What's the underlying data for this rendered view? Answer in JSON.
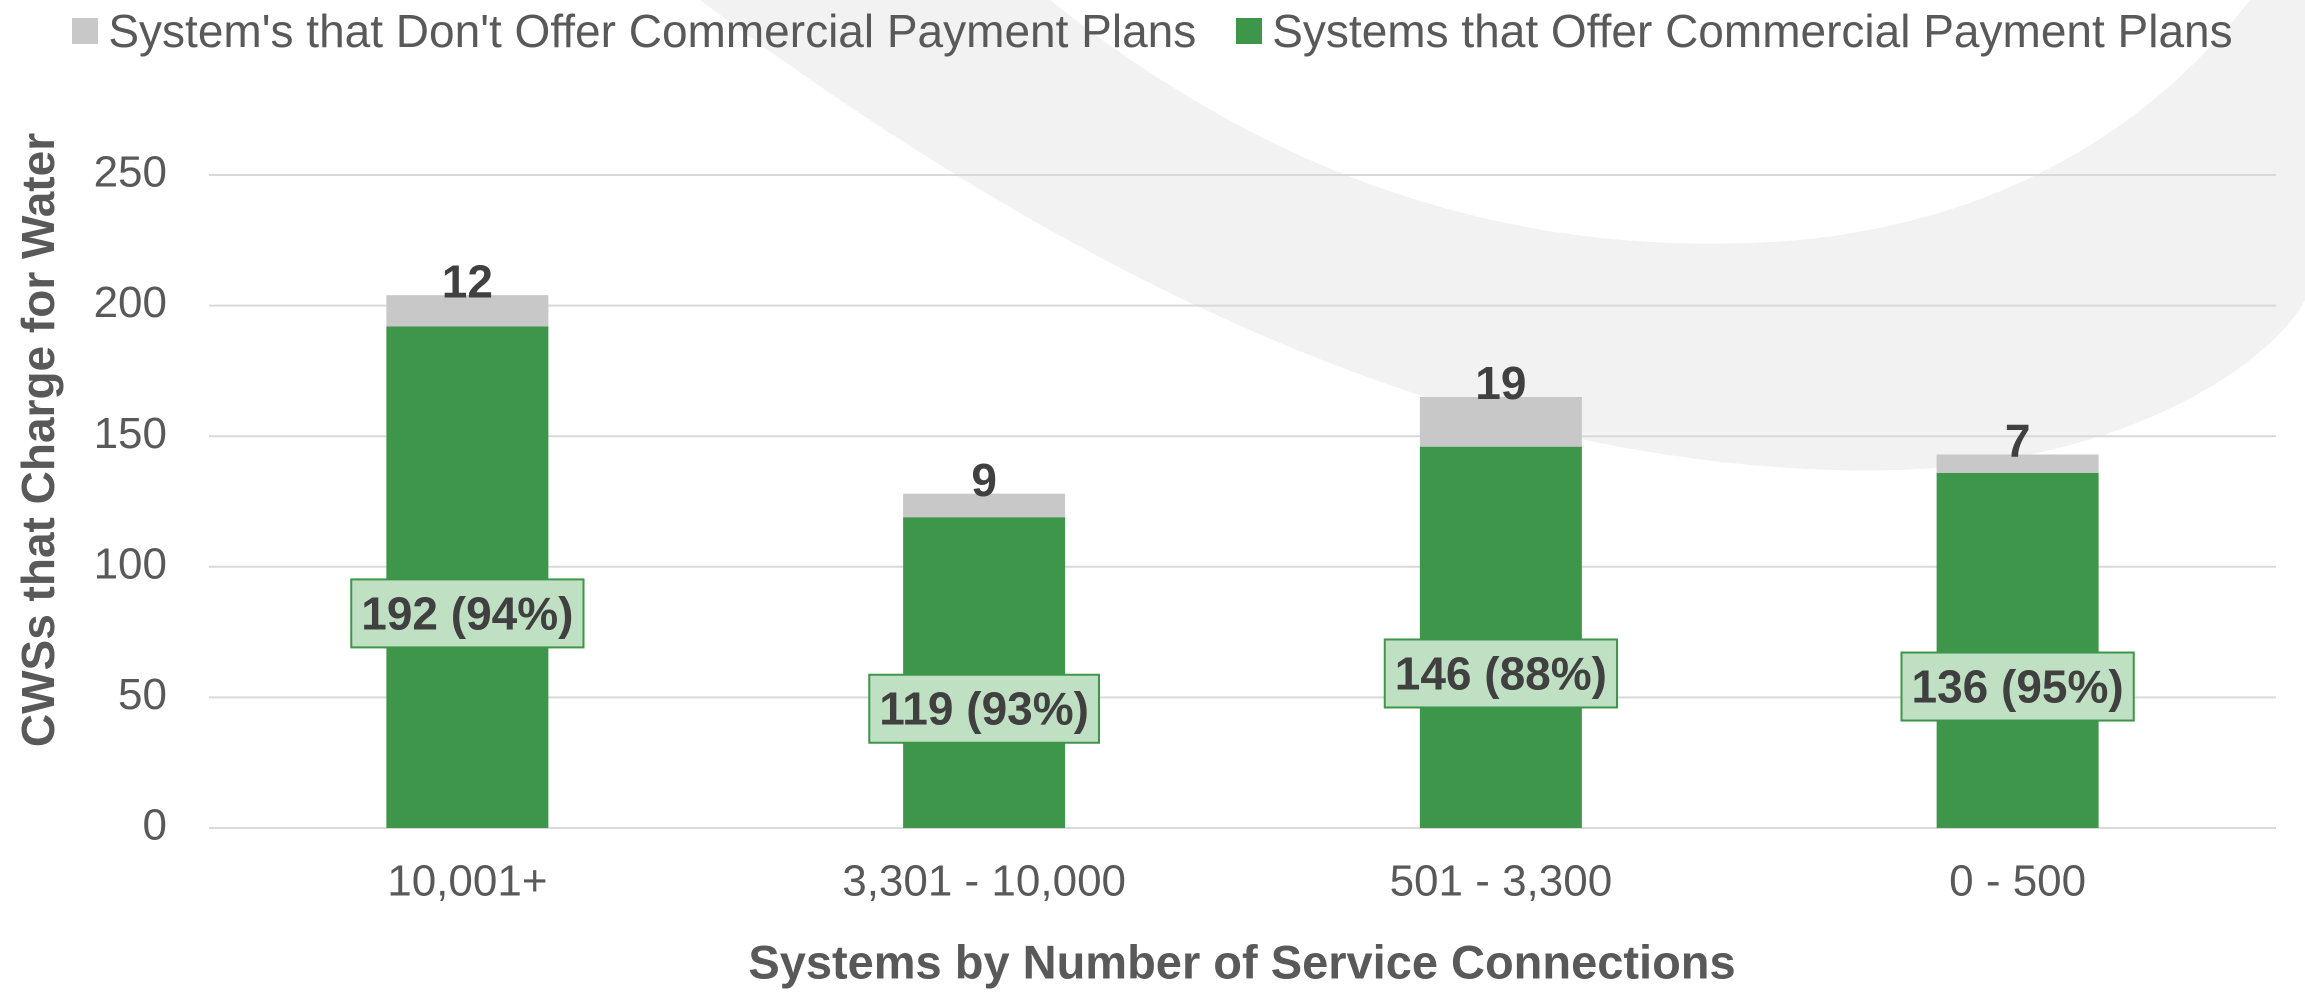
{
  "chart_data": {
    "type": "stacked_bar",
    "categories": [
      "10,001+",
      "3,301 - 10,000",
      "501 - 3,300",
      "0 - 500"
    ],
    "series": [
      {
        "name": "System's that Don't Offer Commercial Payment Plans",
        "color": "#c8c8c8",
        "values": [
          12,
          9,
          19,
          7
        ]
      },
      {
        "name": "Systems that Offer Commercial Payment Plans",
        "color": "#3d9649",
        "values": [
          192,
          119,
          146,
          136
        ],
        "value_labels": [
          "192 (94%)",
          "119 (93%)",
          "146 (88%)",
          "136 (95%)"
        ]
      }
    ],
    "x_label": "Systems by Number of Service Connections",
    "y_label": "CWSs that Charge for Water",
    "ylim": [
      0,
      250
    ],
    "yticks": [
      0,
      50,
      100,
      150,
      200,
      250
    ],
    "grid": true,
    "legend": "top"
  }
}
